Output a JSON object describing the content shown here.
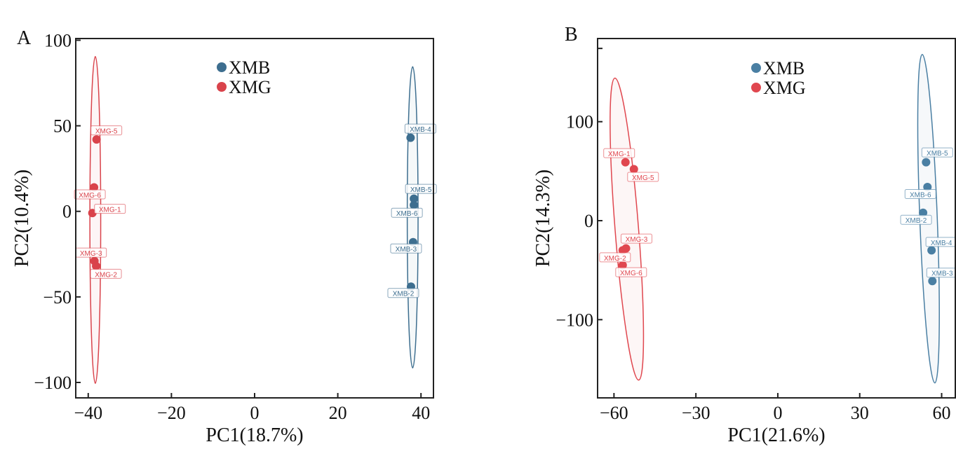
{
  "chart_data": [
    {
      "type": "scatter",
      "panel": "A",
      "xlabel": "PC1(18.7%)",
      "ylabel": "PC2(10.4%)",
      "xlim": [
        -43,
        43
      ],
      "ylim": [
        -109,
        101
      ],
      "xticks": [
        -40,
        -20,
        0,
        20,
        40
      ],
      "xtick_labels": [
        "−40",
        "−20",
        "0",
        "20",
        "40"
      ],
      "yticks": [
        -100,
        -50,
        0,
        50,
        100
      ],
      "ytick_labels": [
        "−100",
        "−50",
        "0",
        "50",
        "100"
      ],
      "grid": false,
      "legend": {
        "position": "top-center",
        "entries": [
          "XMB",
          "XMG"
        ]
      },
      "series": [
        {
          "name": "XMB",
          "color": "#3d6e8f",
          "ellipse": {
            "cx": 38.0,
            "cy": -3.5,
            "rx": 1.3,
            "ry": 88,
            "angle": 0
          },
          "points": [
            {
              "label": "XMB-4",
              "x": 37.5,
              "y": 43
            },
            {
              "label": "XMB-5",
              "x": 38.3,
              "y": 7.4
            },
            {
              "label": "XMB-6",
              "x": 38.3,
              "y": 3.7
            },
            {
              "label": "XMB-3",
              "x": 38.1,
              "y": -18
            },
            {
              "label": "XMB-2",
              "x": 37.6,
              "y": -44
            }
          ]
        },
        {
          "name": "XMG",
          "color": "#d9434b",
          "ellipse": {
            "cx": -38.3,
            "cy": -5,
            "rx": 1.3,
            "ry": 95.5,
            "angle": 0
          },
          "points": [
            {
              "label": "XMG-5",
              "x": -38.0,
              "y": 42
            },
            {
              "label": "XMG-6",
              "x": -38.6,
              "y": 14
            },
            {
              "label": "XMG-1",
              "x": -39.0,
              "y": -1
            },
            {
              "label": "XMG-3",
              "x": -38.5,
              "y": -29
            },
            {
              "label": "XMG-2",
              "x": -38.1,
              "y": -32
            }
          ]
        }
      ]
    },
    {
      "type": "scatter",
      "panel": "B",
      "xlabel": "PC1(21.6%)",
      "ylabel": "PC2(14.3%)",
      "xlim": [
        -66,
        65
      ],
      "ylim": [
        -179,
        184
      ],
      "xticks": [
        -60,
        -30,
        0,
        30,
        60
      ],
      "xtick_labels": [
        "−60",
        "−30",
        "0",
        "30",
        "60"
      ],
      "yticks": [
        -100,
        0,
        100,
        174
      ],
      "ytick_labels": [
        "−100",
        "0",
        "100",
        ""
      ],
      "grid": false,
      "legend": {
        "position": "top-center",
        "entries": [
          "XMB",
          "XMG"
        ]
      },
      "series": [
        {
          "name": "XMB",
          "color": "#4a7fa3",
          "ellipse": {
            "cx": 55.2,
            "cy": 2,
            "rx": 3.2,
            "ry": 166,
            "angle": -2.2
          },
          "points": [
            {
              "label": "XMB-5",
              "x": 54.3,
              "y": 59
            },
            {
              "label": "XMB-6",
              "x": 54.8,
              "y": 34
            },
            {
              "label": "XMB-2",
              "x": 53.2,
              "y": 8
            },
            {
              "label": "XMB-4",
              "x": 56.3,
              "y": -30
            },
            {
              "label": "XMB-3",
              "x": 56.6,
              "y": -61
            }
          ]
        },
        {
          "name": "XMG",
          "color": "#e0474f",
          "ellipse": {
            "cx": -55.3,
            "cy": -8.5,
            "rx": 4.3,
            "ry": 153,
            "angle": -4.5
          },
          "points": [
            {
              "label": "XMG-1",
              "x": -55.8,
              "y": 59
            },
            {
              "label": "XMG-5",
              "x": -52.7,
              "y": 52
            },
            {
              "label": "XMG-3",
              "x": -55.6,
              "y": -28
            },
            {
              "label": "XMG-2",
              "x": -56.8,
              "y": -30
            },
            {
              "label": "XMG-6",
              "x": -56.8,
              "y": -45
            }
          ]
        }
      ]
    }
  ],
  "panels": {
    "A": {
      "letter": "A",
      "legend_xmb": "XMB",
      "legend_xmg": "XMG",
      "xlabel": "PC1(18.7%)",
      "ylabel": "PC2(10.4%)"
    },
    "B": {
      "letter": "B",
      "legend_xmb": "XMB",
      "legend_xmg": "XMG",
      "xlabel": "PC1(21.6%)",
      "ylabel": "PC2(14.3%)"
    }
  },
  "colors": {
    "axis": "#222222",
    "xmb_a": "#3d6e8f",
    "xmg_a": "#d9434b",
    "xmb_b": "#4a7fa3",
    "xmg_b": "#e0474f"
  }
}
